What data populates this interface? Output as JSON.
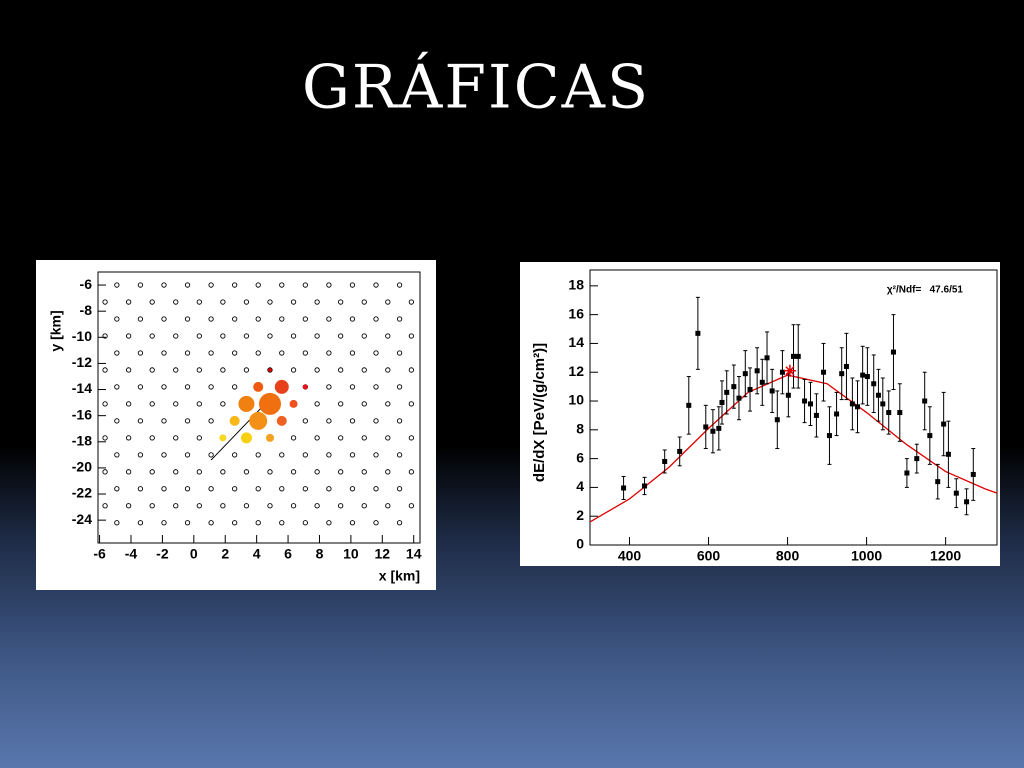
{
  "title": "GRÁFICAS",
  "chart_data": [
    {
      "type": "scatter",
      "xlabel": "x [km]",
      "ylabel": "y [km]",
      "xlim": [
        -6.1,
        14.4
      ],
      "ylim": [
        -25.75,
        -5
      ],
      "xticks": [
        -6,
        -4,
        -2,
        0,
        2,
        4,
        6,
        8,
        10,
        12,
        14
      ],
      "yticks": [
        -6,
        -8,
        -10,
        -12,
        -14,
        -16,
        -18,
        -20,
        -22,
        -24
      ],
      "station_color": "#000000",
      "stations": [
        {
          "y": -6,
          "x": [
            -4.9,
            -3.4,
            -1.9,
            -0.4,
            1.1,
            2.6,
            4.1,
            5.6,
            7.1,
            8.6,
            10.1,
            11.6,
            13.1
          ]
        },
        {
          "y": -7.3,
          "x": [
            -5.65,
            -4.15,
            -2.65,
            -1.15,
            0.35,
            1.85,
            3.35,
            4.85,
            6.35,
            7.85,
            9.35,
            10.85,
            12.35,
            13.85
          ]
        },
        {
          "y": -8.6,
          "x": [
            -4.9,
            -3.4,
            -1.9,
            -0.4,
            1.1,
            2.6,
            4.1,
            5.6,
            7.1,
            8.6,
            10.1,
            11.6,
            13.1
          ]
        },
        {
          "y": -9.9,
          "x": [
            -5.65,
            -4.15,
            -2.65,
            -1.15,
            0.35,
            1.85,
            3.35,
            4.85,
            6.35,
            7.85,
            9.35,
            10.85,
            12.35,
            13.85
          ]
        },
        {
          "y": -11.2,
          "x": [
            -4.9,
            -3.4,
            -1.9,
            -0.4,
            1.1,
            2.6,
            4.1,
            5.6,
            7.1,
            8.6,
            10.1,
            11.6,
            13.1
          ]
        },
        {
          "y": -12.5,
          "x": [
            -5.65,
            -4.15,
            -2.65,
            -1.15,
            0.35,
            1.85,
            3.35,
            4.85,
            6.35,
            7.85,
            9.35,
            10.85,
            12.35,
            13.85
          ]
        },
        {
          "y": -13.8,
          "x": [
            -4.9,
            -3.4,
            -1.9,
            -0.4,
            1.1,
            2.6,
            4.1,
            5.6,
            7.1,
            8.6,
            10.1,
            11.6,
            13.1
          ]
        },
        {
          "y": -15.1,
          "x": [
            -5.65,
            -4.15,
            -2.65,
            -1.15,
            0.35,
            1.85,
            3.35,
            4.85,
            6.35,
            7.85,
            9.35,
            10.85,
            12.35,
            13.85
          ]
        },
        {
          "y": -16.4,
          "x": [
            -4.9,
            -3.4,
            -1.9,
            -0.4,
            1.1,
            2.6,
            4.1,
            5.6,
            7.1,
            8.6,
            10.1,
            11.6,
            13.1
          ]
        },
        {
          "y": -17.7,
          "x": [
            -5.65,
            -4.15,
            -2.65,
            -1.15,
            0.35,
            1.85,
            3.35,
            4.85,
            6.35,
            7.85,
            9.35,
            10.85,
            12.35,
            13.85
          ]
        },
        {
          "y": -19,
          "x": [
            -4.9,
            -3.4,
            -1.9,
            -0.4,
            1.1,
            2.6,
            4.1,
            5.6,
            7.1,
            8.6,
            10.1,
            11.6,
            13.1
          ]
        },
        {
          "y": -20.3,
          "x": [
            -5.65,
            -4.15,
            -2.65,
            -1.15,
            0.35,
            1.85,
            3.35,
            4.85,
            6.35,
            7.85,
            9.35,
            10.85,
            12.35,
            13.85
          ]
        },
        {
          "y": -21.6,
          "x": [
            -4.9,
            -3.4,
            -1.9,
            -0.4,
            1.1,
            2.6,
            4.1,
            5.6,
            7.1,
            8.6,
            10.1,
            11.6,
            13.1
          ]
        },
        {
          "y": -22.9,
          "x": [
            -5.65,
            -4.15,
            -2.65,
            -1.15,
            0.35,
            1.85,
            3.35,
            4.85,
            6.35,
            7.85,
            9.35,
            10.85,
            12.35,
            13.85
          ]
        },
        {
          "y": -24.2,
          "x": [
            -4.9,
            -3.4,
            -1.9,
            -0.4,
            1.1,
            2.6,
            4.1,
            5.6,
            7.1,
            8.6,
            10.1,
            11.6,
            13.1
          ]
        }
      ],
      "hits": {
        "x": [
          4.85,
          7.1,
          4.1,
          5.6,
          3.35,
          4.85,
          6.35,
          2.6,
          4.1,
          5.6,
          1.85,
          3.35,
          4.85
        ],
        "y": [
          -12.5,
          -13.8,
          -13.8,
          -13.8,
          -15.1,
          -15.1,
          -15.1,
          -16.4,
          -16.4,
          -16.4,
          -17.7,
          -17.7,
          -17.7
        ],
        "sizes": [
          2,
          2.5,
          5,
          7,
          8,
          11,
          4,
          5,
          9,
          5,
          3.5,
          5.5,
          4
        ],
        "colors": [
          "#cc0000",
          "#e8101a",
          "#f05a10",
          "#e8401a",
          "#f08010",
          "#f07010",
          "#f05020",
          "#f8b818",
          "#f49018",
          "#f06020",
          "#f8d820",
          "#f8d010",
          "#f4a020"
        ]
      },
      "track": {
        "x": [
          1.1,
          4.3
        ],
        "y": [
          -19.4,
          -15.4
        ],
        "color": "#000000"
      }
    },
    {
      "type": "errorbar",
      "ylabel": "dE/dX [PeV/(g/cm²)]",
      "annotation": "χ²/Ndf=   47.6/51",
      "xlim": [
        300,
        1330
      ],
      "ylim": [
        0,
        19.1
      ],
      "xticks": [
        400,
        600,
        800,
        1000,
        1200
      ],
      "yticks": [
        0,
        2,
        4,
        6,
        8,
        10,
        12,
        14,
        16,
        18
      ],
      "series": [
        {
          "color": "#000000",
          "x": [
            385,
            438,
            489,
            527,
            550,
            573,
            593,
            611,
            626,
            634,
            646,
            664,
            677,
            693,
            705,
            723,
            736,
            748,
            761,
            774,
            787,
            802,
            815,
            827,
            843,
            858,
            873,
            891,
            906,
            924,
            937,
            949,
            964,
            977,
            990,
            1002,
            1018,
            1030,
            1041,
            1056,
            1068,
            1084,
            1102,
            1127,
            1147,
            1160,
            1180,
            1195,
            1207,
            1227,
            1253,
            1270
          ],
          "values": [
            3.96,
            4.1,
            5.8,
            6.5,
            9.7,
            14.7,
            8.2,
            7.9,
            8.1,
            9.9,
            10.6,
            11.0,
            10.2,
            11.9,
            10.8,
            12.1,
            11.3,
            13.0,
            10.7,
            8.7,
            12.0,
            10.4,
            13.1,
            13.1,
            10.0,
            9.8,
            9.0,
            12.0,
            7.6,
            9.1,
            11.9,
            12.4,
            9.8,
            9.6,
            11.8,
            11.7,
            11.2,
            10.4,
            9.8,
            9.2,
            13.4,
            9.2,
            5.0,
            6.0,
            10.0,
            7.6,
            4.4,
            8.4,
            6.3,
            3.6,
            3.0,
            4.9
          ],
          "errors": [
            0.8,
            0.6,
            0.8,
            1,
            2,
            2.5,
            1.5,
            1.5,
            1.5,
            1.5,
            1.5,
            1.5,
            1.5,
            1.6,
            1.5,
            1.6,
            1.6,
            1.8,
            1.5,
            2,
            1.5,
            1.5,
            2.2,
            2.2,
            1.5,
            1.5,
            1.5,
            2,
            2,
            1.5,
            1.8,
            2.3,
            1.8,
            1.8,
            2,
            2,
            2,
            1.8,
            1.8,
            1.5,
            2.6,
            2,
            1,
            1,
            2,
            2,
            1.2,
            2.2,
            2.3,
            1,
            0.9,
            1.8
          ]
        }
      ],
      "fit": {
        "color": "#e00000",
        "x": [
          300,
          400,
          500,
          600,
          700,
          800,
          900,
          1000,
          1100,
          1200,
          1300,
          1330
        ],
        "values": [
          1.6,
          3.2,
          5.4,
          8.1,
          10.6,
          11.8,
          11.2,
          9.2,
          7.0,
          5.1,
          3.9,
          3.6
        ]
      },
      "marker": {
        "x": 806,
        "y": 12.1,
        "color": "#e00000"
      }
    }
  ]
}
